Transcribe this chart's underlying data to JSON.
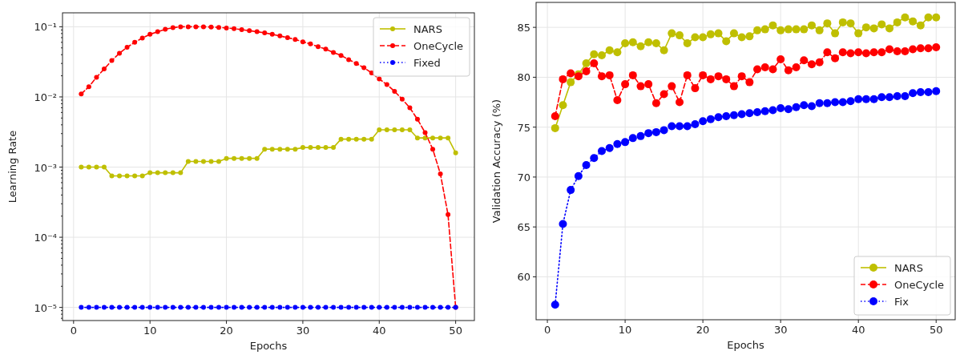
{
  "chart_data": [
    {
      "type": "line",
      "xlabel": "Epochs",
      "ylabel": "Learning Rate",
      "log": "y",
      "grid": true,
      "legend": "top right",
      "marker": "circle",
      "x": [
        1,
        2,
        3,
        4,
        5,
        6,
        7,
        8,
        9,
        10,
        11,
        12,
        13,
        14,
        15,
        16,
        17,
        18,
        19,
        20,
        21,
        22,
        23,
        24,
        25,
        26,
        27,
        28,
        29,
        30,
        31,
        32,
        33,
        34,
        35,
        36,
        37,
        38,
        39,
        40,
        41,
        42,
        43,
        44,
        45,
        46,
        47,
        48,
        49,
        50
      ],
      "xlim": [
        -1.45,
        52.45
      ],
      "xticks": [
        0,
        10,
        20,
        30,
        40,
        50
      ],
      "ylim": [
        6.5e-06,
        0.158
      ],
      "yticks": [
        {
          "value": 1e-05,
          "label": "10⁻⁵"
        },
        {
          "value": 0.0001,
          "label": "10⁻⁴"
        },
        {
          "value": 0.001,
          "label": "10⁻³"
        },
        {
          "value": 0.01,
          "label": "10⁻²"
        },
        {
          "value": 0.1,
          "label": "10⁻¹"
        },
        {
          "value": 7e-06,
          "label": null
        },
        {
          "value": 8e-06,
          "label": null
        },
        {
          "value": 9e-06,
          "label": null
        },
        {
          "value": 2e-05,
          "label": null
        },
        {
          "value": 3e-05,
          "label": null
        },
        {
          "value": 4e-05,
          "label": null
        },
        {
          "value": 5e-05,
          "label": null
        },
        {
          "value": 6e-05,
          "label": null
        },
        {
          "value": 7e-05,
          "label": null
        },
        {
          "value": 8e-05,
          "label": null
        },
        {
          "value": 9e-05,
          "label": null
        },
        {
          "value": 0.0002,
          "label": null
        },
        {
          "value": 0.0003,
          "label": null
        },
        {
          "value": 0.0004,
          "label": null
        },
        {
          "value": 0.0005,
          "label": null
        },
        {
          "value": 0.0006,
          "label": null
        },
        {
          "value": 0.0007,
          "label": null
        },
        {
          "value": 0.0008,
          "label": null
        },
        {
          "value": 0.0009,
          "label": null
        },
        {
          "value": 0.002,
          "label": null
        },
        {
          "value": 0.003,
          "label": null
        },
        {
          "value": 0.004,
          "label": null
        },
        {
          "value": 0.005,
          "label": null
        },
        {
          "value": 0.006,
          "label": null
        },
        {
          "value": 0.007,
          "label": null
        },
        {
          "value": 0.008,
          "label": null
        },
        {
          "value": 0.009,
          "label": null
        },
        {
          "value": 0.02,
          "label": null
        },
        {
          "value": 0.03,
          "label": null
        },
        {
          "value": 0.04,
          "label": null
        },
        {
          "value": 0.05,
          "label": null
        },
        {
          "value": 0.06,
          "label": null
        },
        {
          "value": 0.07,
          "label": null
        },
        {
          "value": 0.08,
          "label": null
        },
        {
          "value": 0.09,
          "label": null
        }
      ],
      "series": [
        {
          "name": "NARS",
          "color": "#bfbf00",
          "line_style": "solid",
          "values": [
            0.001,
            0.001,
            0.001,
            0.001,
            0.00075,
            0.00075,
            0.00075,
            0.00075,
            0.00075,
            0.00083,
            0.00083,
            0.00083,
            0.00083,
            0.00083,
            0.0012,
            0.0012,
            0.0012,
            0.0012,
            0.0012,
            0.00133,
            0.00133,
            0.00133,
            0.00133,
            0.00133,
            0.0018,
            0.0018,
            0.0018,
            0.0018,
            0.0018,
            0.0019,
            0.0019,
            0.0019,
            0.0019,
            0.0019,
            0.0025,
            0.0025,
            0.0025,
            0.0025,
            0.0025,
            0.0034,
            0.0034,
            0.0034,
            0.0034,
            0.0034,
            0.0026,
            0.0026,
            0.0026,
            0.0026,
            0.0026,
            0.0016
          ]
        },
        {
          "name": "OneCycle",
          "color": "#ff0000",
          "line_style": "dashed",
          "values": [
            0.011,
            0.014,
            0.019,
            0.025,
            0.033,
            0.042,
            0.051,
            0.06,
            0.069,
            0.078,
            0.085,
            0.092,
            0.097,
            0.1,
            0.1,
            0.1,
            0.1,
            0.099,
            0.098,
            0.096,
            0.094,
            0.091,
            0.088,
            0.085,
            0.082,
            0.078,
            0.074,
            0.07,
            0.066,
            0.061,
            0.057,
            0.052,
            0.048,
            0.043,
            0.039,
            0.034,
            0.03,
            0.026,
            0.022,
            0.018,
            0.015,
            0.012,
            0.0093,
            0.007,
            0.0048,
            0.0031,
            0.0018,
            0.0008,
            0.00021,
            1e-05
          ]
        },
        {
          "name": "Fixed",
          "color": "#0000ff",
          "line_style": "dotted",
          "values": [
            1e-05,
            1e-05,
            1e-05,
            1e-05,
            1e-05,
            1e-05,
            1e-05,
            1e-05,
            1e-05,
            1e-05,
            1e-05,
            1e-05,
            1e-05,
            1e-05,
            1e-05,
            1e-05,
            1e-05,
            1e-05,
            1e-05,
            1e-05,
            1e-05,
            1e-05,
            1e-05,
            1e-05,
            1e-05,
            1e-05,
            1e-05,
            1e-05,
            1e-05,
            1e-05,
            1e-05,
            1e-05,
            1e-05,
            1e-05,
            1e-05,
            1e-05,
            1e-05,
            1e-05,
            1e-05,
            1e-05,
            1e-05,
            1e-05,
            1e-05,
            1e-05,
            1e-05,
            1e-05,
            1e-05,
            1e-05,
            1e-05,
            1e-05
          ]
        }
      ]
    },
    {
      "type": "line",
      "xlabel": "Epochs",
      "ylabel": "Validation Accuracy (%)",
      "grid": true,
      "legend": "bottom right",
      "marker": "circle",
      "x": [
        1,
        2,
        3,
        4,
        5,
        6,
        7,
        8,
        9,
        10,
        11,
        12,
        13,
        14,
        15,
        16,
        17,
        18,
        19,
        20,
        21,
        22,
        23,
        24,
        25,
        26,
        27,
        28,
        29,
        30,
        31,
        32,
        33,
        34,
        35,
        36,
        37,
        38,
        39,
        40,
        41,
        42,
        43,
        44,
        45,
        46,
        47,
        48,
        49,
        50
      ],
      "xlim": [
        -1.45,
        52.45
      ],
      "xticks": [
        0,
        10,
        20,
        30,
        40,
        50
      ],
      "ylim": [
        55.7,
        87.5
      ],
      "yticks": [
        60,
        65,
        70,
        75,
        80,
        85
      ],
      "series": [
        {
          "name": "NARS",
          "color": "#bfbf00",
          "line_style": "solid",
          "values": [
            74.9,
            77.2,
            79.5,
            80.3,
            81.4,
            82.3,
            82.2,
            82.7,
            82.5,
            83.4,
            83.5,
            83.1,
            83.5,
            83.4,
            82.7,
            84.4,
            84.2,
            83.4,
            84.0,
            84.0,
            84.3,
            84.4,
            83.6,
            84.4,
            84.0,
            84.1,
            84.7,
            84.8,
            85.2,
            84.7,
            84.8,
            84.8,
            84.8,
            85.2,
            84.7,
            85.4,
            84.4,
            85.5,
            85.4,
            84.4,
            85.0,
            84.9,
            85.3,
            84.9,
            85.5,
            86.0,
            85.6,
            85.2,
            86.0,
            86.0
          ]
        },
        {
          "name": "OneCycle",
          "color": "#ff0000",
          "line_style": "dashed",
          "values": [
            76.1,
            79.8,
            80.4,
            80.1,
            80.6,
            81.4,
            80.1,
            80.2,
            77.7,
            79.3,
            80.2,
            79.1,
            79.3,
            77.4,
            78.3,
            79.1,
            77.5,
            80.2,
            78.9,
            80.2,
            79.8,
            80.1,
            79.8,
            79.1,
            80.1,
            79.5,
            80.8,
            81.0,
            80.8,
            81.8,
            80.7,
            81.0,
            81.7,
            81.3,
            81.5,
            82.5,
            81.9,
            82.5,
            82.4,
            82.5,
            82.4,
            82.5,
            82.5,
            82.8,
            82.6,
            82.6,
            82.8,
            82.9,
            82.9,
            83.0
          ]
        },
        {
          "name": "Fix",
          "color": "#0000ff",
          "line_style": "dotted",
          "values": [
            57.2,
            65.3,
            68.7,
            70.1,
            71.2,
            71.9,
            72.6,
            72.9,
            73.3,
            73.5,
            73.9,
            74.1,
            74.4,
            74.5,
            74.7,
            75.1,
            75.1,
            75.1,
            75.3,
            75.6,
            75.8,
            76.0,
            76.1,
            76.2,
            76.3,
            76.4,
            76.5,
            76.6,
            76.7,
            76.9,
            76.8,
            77.0,
            77.2,
            77.1,
            77.4,
            77.4,
            77.5,
            77.5,
            77.6,
            77.8,
            77.8,
            77.8,
            78.0,
            78.0,
            78.1,
            78.1,
            78.4,
            78.5,
            78.5,
            78.6
          ]
        }
      ]
    }
  ]
}
